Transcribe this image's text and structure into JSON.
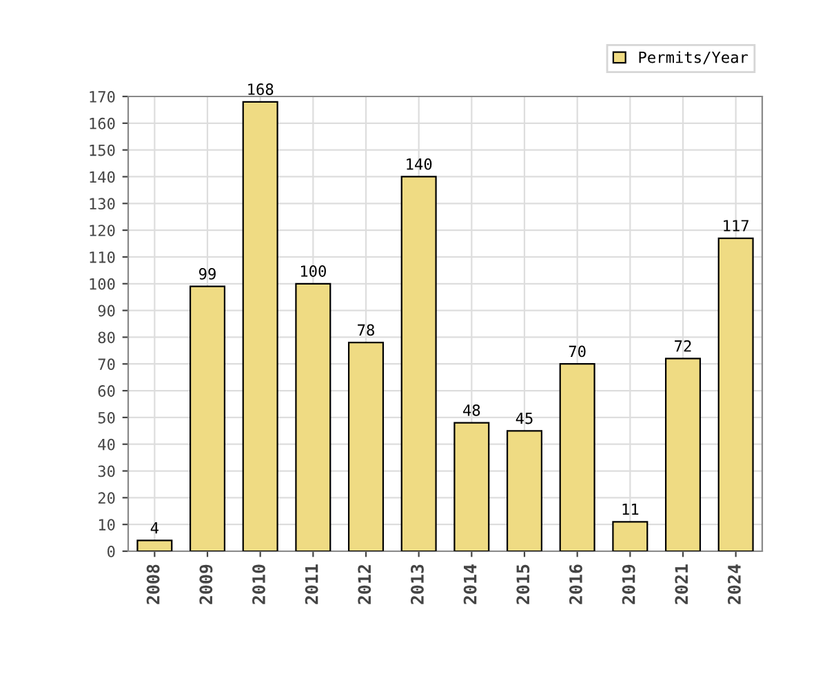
{
  "chart_data": {
    "type": "bar",
    "categories": [
      "2008",
      "2009",
      "2010",
      "2011",
      "2012",
      "2013",
      "2014",
      "2015",
      "2016",
      "2019",
      "2021",
      "2024"
    ],
    "series": [
      {
        "name": "Permits/Year",
        "color": "#efdb83",
        "values": [
          4,
          99,
          168,
          100,
          78,
          140,
          48,
          45,
          70,
          11,
          72,
          117
        ]
      }
    ],
    "ylim": [
      0,
      170
    ],
    "yticks": [
      0,
      10,
      20,
      30,
      40,
      50,
      60,
      70,
      80,
      90,
      100,
      110,
      120,
      130,
      140,
      150,
      160,
      170
    ],
    "grid": true,
    "legend": "top right",
    "data_labels": true
  }
}
